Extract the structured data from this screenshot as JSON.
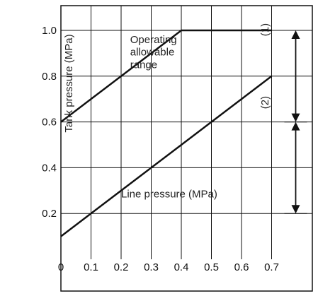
{
  "chart_data": {
    "type": "line",
    "ylabel": "Tank pressure (MPa)",
    "xlabel": "Line pressure (MPa)",
    "xlim": [
      0,
      0.8
    ],
    "ylim": [
      0,
      1.1
    ],
    "grid": true,
    "x_ticks": [
      "0",
      "0.1",
      "0.2",
      "0.3",
      "0.4",
      "0.5",
      "0.6",
      "0.7"
    ],
    "y_ticks": [
      "0.2",
      "0.4",
      "0.6",
      "0.8",
      "1.0"
    ],
    "series": [
      {
        "name": "(1)",
        "x": [
          0,
          0.4,
          0.7
        ],
        "y": [
          0.6,
          1.0,
          1.0
        ]
      },
      {
        "name": "(2)",
        "x": [
          0,
          0.7
        ],
        "y": [
          0.1,
          0.8
        ]
      }
    ],
    "annotations": [
      {
        "text": "Operating",
        "x": 0.23,
        "y": 0.945
      },
      {
        "text": "allowable",
        "x": 0.23,
        "y": 0.89
      },
      {
        "text": "range",
        "x": 0.23,
        "y": 0.835
      },
      {
        "text": "Line pressure (MPa)",
        "x": 0.2,
        "y": 0.27
      }
    ],
    "range_arrows": [
      {
        "x": 0.78,
        "from": 1.0,
        "to": 0.6
      },
      {
        "x": 0.78,
        "from": 0.6,
        "to": 0.2
      }
    ],
    "line_color": "#111111",
    "grid_color": "#111111"
  }
}
